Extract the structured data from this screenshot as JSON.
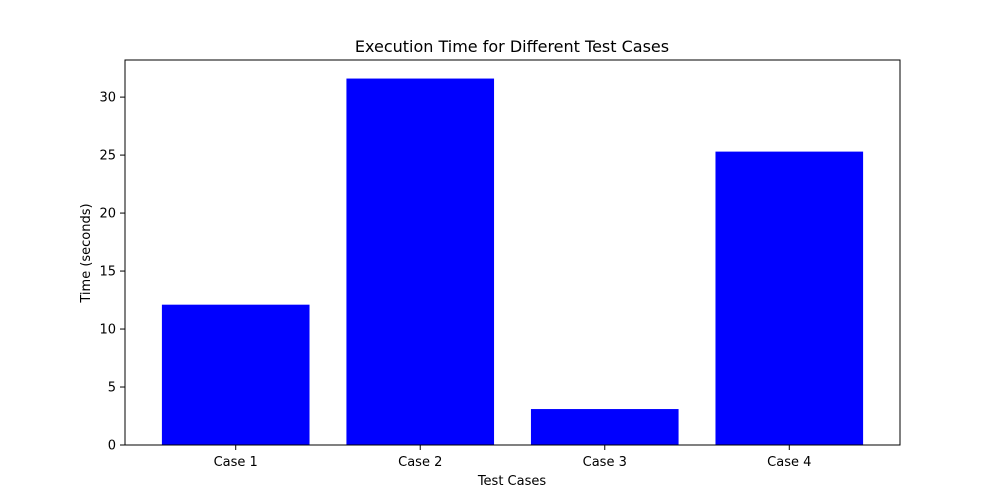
{
  "chart_data": {
    "type": "bar",
    "title": "Execution Time for Different Test Cases",
    "xlabel": "Test Cases",
    "ylabel": "Time (seconds)",
    "categories": [
      "Case 1",
      "Case 2",
      "Case 3",
      "Case 4"
    ],
    "values": [
      12.1,
      31.6,
      3.1,
      25.3
    ],
    "ylim": [
      0,
      33.2
    ],
    "yticks": [
      0,
      5,
      10,
      15,
      20,
      25,
      30
    ],
    "grid": false,
    "legend": "none",
    "colors": {
      "bar": "#0000ff",
      "axis": "#000000",
      "background": "#ffffff"
    }
  }
}
